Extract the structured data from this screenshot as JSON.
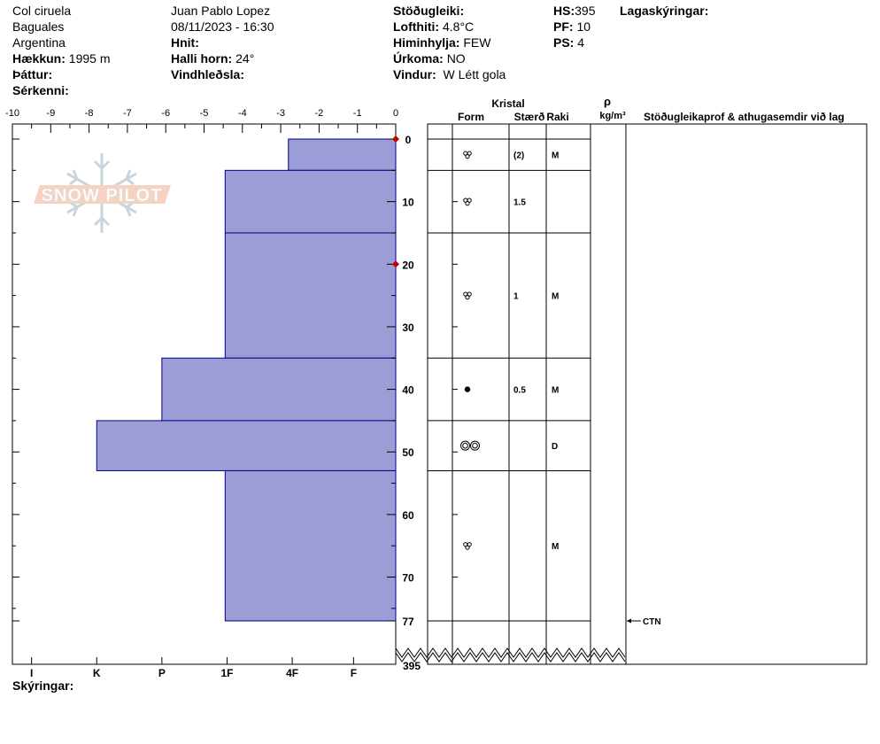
{
  "header": {
    "location_lines": [
      "Col ciruela",
      "Baguales",
      "Argentina"
    ],
    "elevation_label": "Hækkun:",
    "elevation_value": "1995 m",
    "aspect_label": "Þáttur:",
    "aspect_value": "",
    "specifics_label": "Sérkenni:",
    "specifics_value": "",
    "observer": "Juan Pablo  Lopez",
    "datetime": "08/11/2023 - 16:30",
    "coords_label": "Hnit:",
    "coords_value": "",
    "slope_label": "Halli horn:",
    "slope_value": "24°",
    "wind_loading_label": "Vindhleðsla:",
    "wind_loading_value": "",
    "stability_label": "Stöðugleiki:",
    "stability_value": "",
    "air_temp_label": "Lofthiti:",
    "air_temp_value": "4.8°C",
    "sky_label": "Himinhylja:",
    "sky_value": "FEW",
    "precip_label": "Úrkoma:",
    "precip_value": "NO",
    "wind_label": "Vindur:",
    "wind_value": "W Létt gola",
    "hs_label": "HS:",
    "hs_value": "395",
    "pf_label": "PF:",
    "pf_value": "10",
    "ps_label": "PS:",
    "ps_value": "4",
    "layer_notes_label": "Lagaskýringar:"
  },
  "legend_label": "Skýringar:",
  "watermark_text": "SNOW PILOT",
  "columns": {
    "crystal": "Kristal",
    "form": "Form",
    "size": "Stærð",
    "moisture": "Raki",
    "density_symbol": "ρ",
    "density_unit": "kg/m³",
    "tests": "Stöðugleikaprof & athugasemdir við lag"
  },
  "colors": {
    "bar_fill": "#9c9cd7",
    "bar_stroke": "#00008b",
    "marker": "#c00000"
  },
  "chart_data": {
    "type": "bar",
    "orientation": "horizontal",
    "temperature_axis": {
      "ticks": [
        -10,
        -9,
        -8,
        -7,
        -6,
        -5,
        -4,
        -3,
        -2,
        -1,
        0
      ],
      "range": [
        -10,
        0
      ]
    },
    "depth_axis": {
      "ticks": [
        0,
        10,
        20,
        30,
        40,
        50,
        60,
        70,
        77
      ],
      "range": [
        0,
        77
      ],
      "total_label": "395"
    },
    "hardness_axis": {
      "labels": [
        "I",
        "K",
        "P",
        "1F",
        "4F",
        "F"
      ],
      "values": [
        -9.5,
        -7.8,
        -6.1,
        -4.4,
        -2.7,
        -1.1
      ]
    },
    "layers": [
      {
        "top": 0,
        "bottom": 5,
        "hardness": -2.8,
        "form": "precip-particles-icon",
        "size": "(2)",
        "moisture": "M"
      },
      {
        "top": 5,
        "bottom": 15,
        "hardness": -4.45,
        "form": "precip-particles-icon",
        "size": "1.5",
        "moisture": ""
      },
      {
        "top": 15,
        "bottom": 35,
        "hardness": -4.45,
        "form": "precip-particles-icon",
        "size": "1",
        "moisture": "M"
      },
      {
        "top": 35,
        "bottom": 45,
        "hardness": -6.1,
        "form": "rounded-grain-icon",
        "size": "0.5",
        "moisture": "M"
      },
      {
        "top": 45,
        "bottom": 53,
        "hardness": -7.8,
        "form": "melt-form-icon",
        "size": "",
        "moisture": "D"
      },
      {
        "top": 53,
        "bottom": 77,
        "hardness": -4.45,
        "form": "precip-particles-icon",
        "size": "",
        "moisture": "M"
      }
    ],
    "temperature_points": [
      {
        "depth": 0,
        "temp": 0
      },
      {
        "depth": 20,
        "temp": 0
      }
    ],
    "tests": [
      {
        "depth": 77,
        "label": "CTN"
      }
    ]
  }
}
